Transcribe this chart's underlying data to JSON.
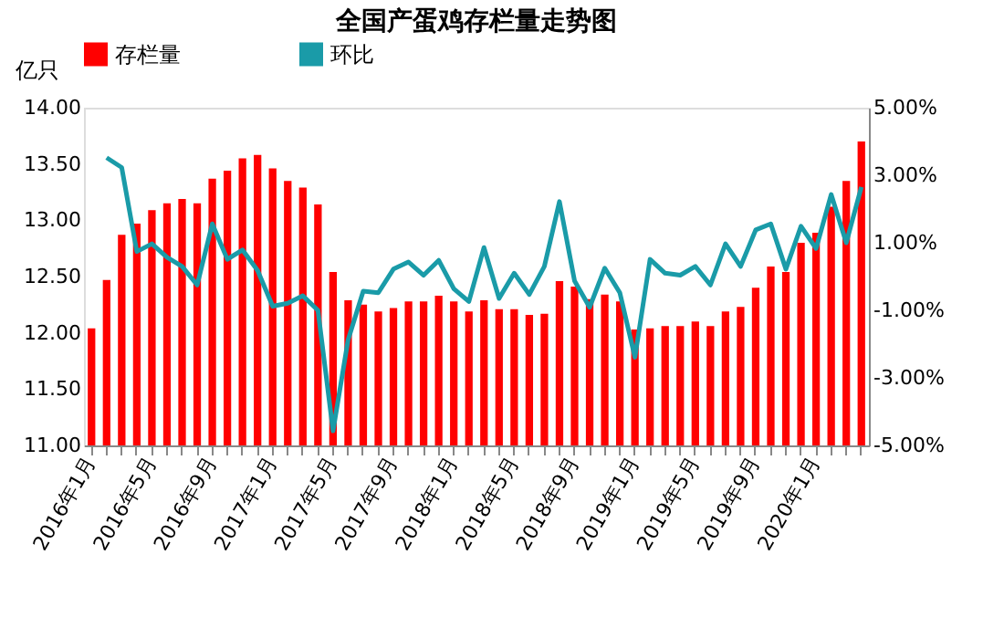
{
  "chart_data": {
    "type": "bar",
    "title": "全国产蛋鸡存栏量走势图",
    "ylabel": "亿只",
    "categories": [
      "2016年1月",
      null,
      null,
      null,
      "2016年5月",
      null,
      null,
      null,
      "2016年9月",
      null,
      null,
      null,
      "2017年1月",
      null,
      null,
      null,
      "2017年5月",
      null,
      null,
      null,
      "2017年9月",
      null,
      null,
      null,
      "2018年1月",
      null,
      null,
      null,
      "2018年5月",
      null,
      null,
      null,
      "2018年9月",
      null,
      null,
      null,
      "2019年1月",
      null,
      null,
      null,
      "2019年5月",
      null,
      null,
      null,
      "2019年9月",
      null,
      null,
      null,
      "2020年1月",
      null,
      null,
      null
    ],
    "series": [
      {
        "name": "存栏量",
        "color": "#ff0000",
        "values": [
          12.04,
          12.47,
          12.87,
          12.97,
          13.09,
          13.15,
          13.19,
          13.15,
          13.37,
          13.44,
          13.55,
          13.58,
          13.46,
          13.35,
          13.29,
          13.14,
          12.54,
          12.29,
          12.25,
          12.19,
          12.22,
          12.28,
          12.28,
          12.33,
          12.28,
          12.19,
          12.29,
          12.21,
          12.21,
          12.16,
          12.17,
          12.46,
          12.41,
          12.3,
          12.34,
          12.28,
          12.03,
          12.04,
          12.06,
          12.06,
          12.1,
          12.06,
          12.19,
          12.23,
          12.4,
          12.59,
          12.54,
          12.8,
          12.89,
          13.12,
          13.35,
          13.7
        ]
      },
      {
        "name": "环比",
        "type": "line",
        "axis": "y2",
        "color": "#1a9ba8",
        "values": [
          null,
          3.52,
          3.23,
          0.74,
          0.97,
          0.57,
          0.3,
          -0.25,
          1.56,
          0.51,
          0.79,
          0.18,
          -0.88,
          -0.79,
          -0.57,
          -1.0,
          -4.57,
          -1.87,
          -0.43,
          -0.48,
          0.22,
          0.43,
          0.04,
          0.48,
          -0.36,
          -0.74,
          0.86,
          -0.65,
          0.1,
          -0.53,
          0.3,
          2.22,
          -0.13,
          -0.91,
          0.25,
          -0.48,
          -2.39,
          0.51,
          0.1,
          0.04,
          0.3,
          -0.25,
          0.97,
          0.3,
          1.38,
          1.56,
          0.22,
          1.49,
          0.83,
          2.43,
          1.0,
          2.65
        ]
      }
    ],
    "ylim": [
      11,
      14
    ],
    "yticks": [
      {
        "value": 11,
        "label": "11.00"
      },
      {
        "value": 11.5,
        "label": "11.50"
      },
      {
        "value": 12,
        "label": "12.00"
      },
      {
        "value": 12.5,
        "label": "12.50"
      },
      {
        "value": 13,
        "label": "13.00"
      },
      {
        "value": 13.5,
        "label": "13.50"
      },
      {
        "value": 14,
        "label": "14.00"
      }
    ],
    "y2lim": [
      -5,
      5
    ],
    "y2ticks": [
      {
        "value": -5,
        "label": "-5.00%"
      },
      {
        "value": -3,
        "label": "-3.00%"
      },
      {
        "value": -1,
        "label": "-1.00%"
      },
      {
        "value": 1,
        "label": "1.00%"
      },
      {
        "value": 3,
        "label": "3.00%"
      },
      {
        "value": 5,
        "label": "5.00%"
      }
    ],
    "grid": false,
    "legend": "top"
  }
}
